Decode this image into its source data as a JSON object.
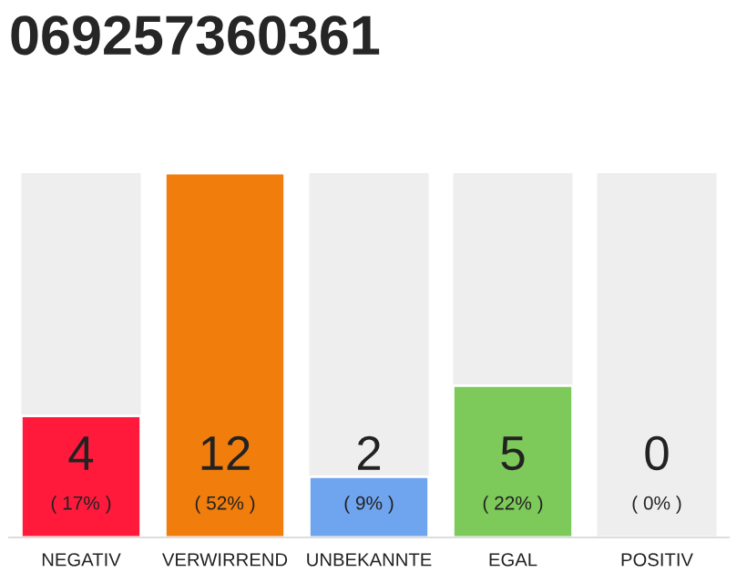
{
  "chart_data": {
    "type": "bar",
    "title": "069257360361",
    "categories": [
      "NEGATIV",
      "VERWIRREND",
      "UNBEKANNTE",
      "EGAL",
      "POSITIV"
    ],
    "values": [
      4,
      12,
      2,
      5,
      0
    ],
    "colors": [
      "#ff1a3c",
      "#f07d0c",
      "#6fa4ef",
      "#7dc95a",
      null
    ],
    "value_labels": [
      "4\n( 17% )",
      "12\n( 52% )",
      "2\n( 9% )",
      "5\n( 22% )",
      "0\n( 0% )"
    ],
    "grid": false,
    "legend": false
  }
}
